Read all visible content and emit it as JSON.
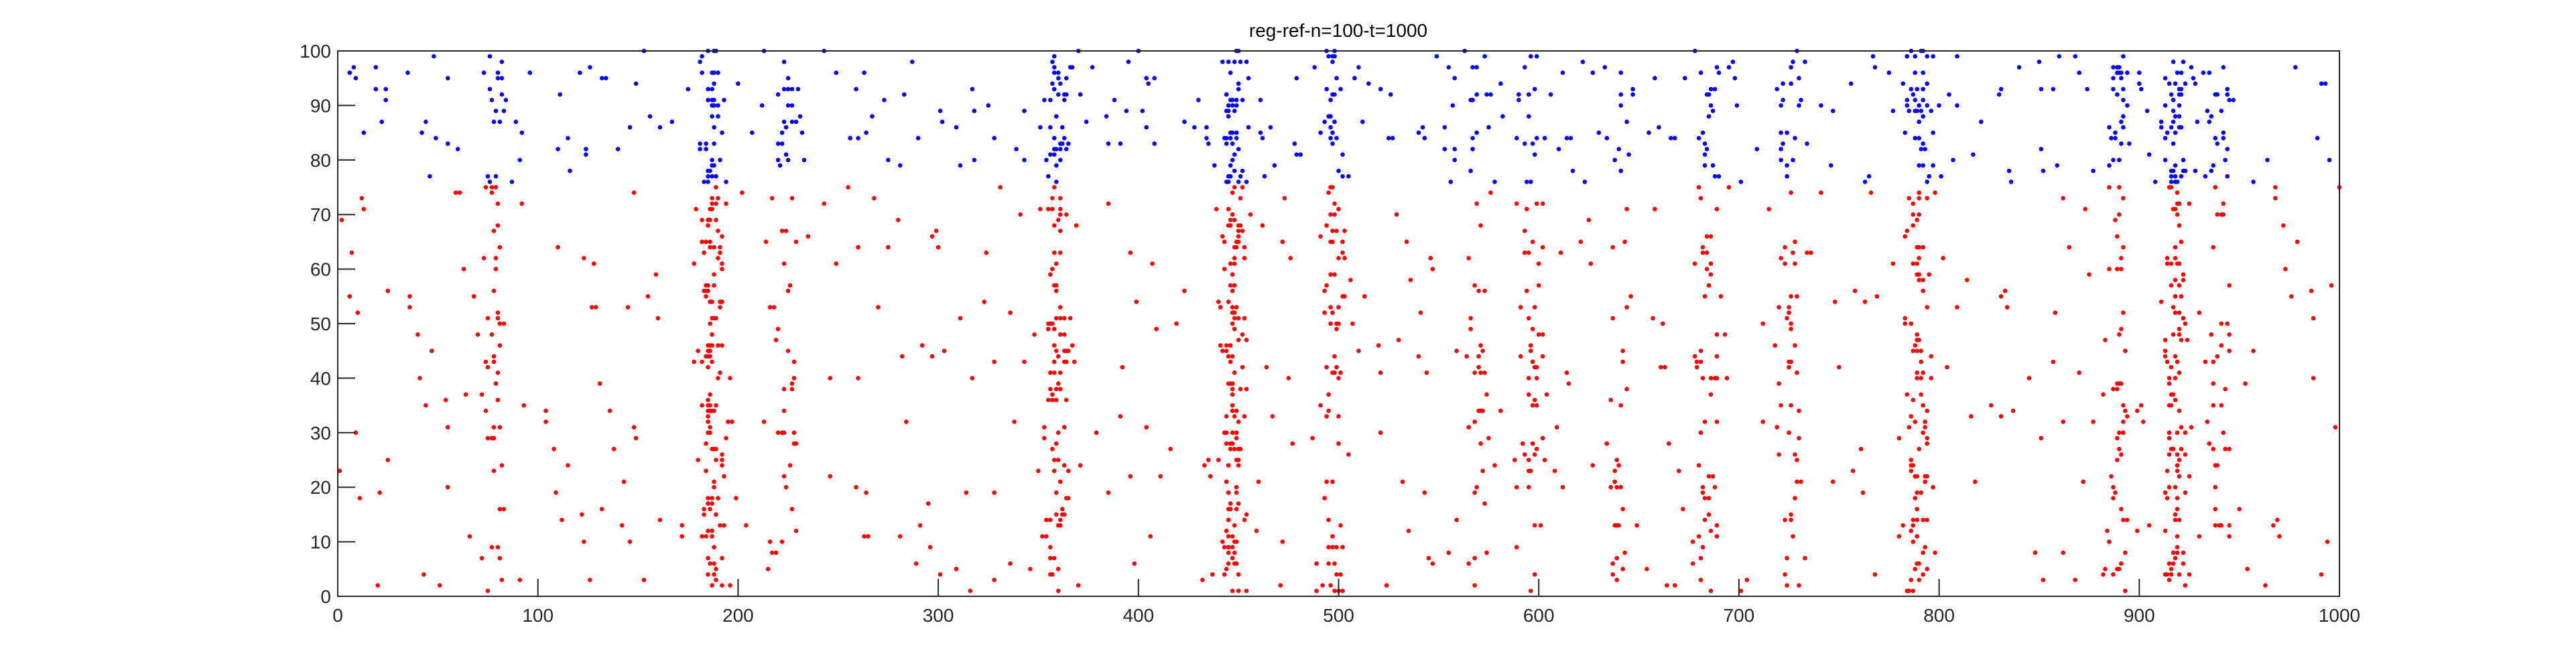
{
  "chart_data": {
    "type": "scatter",
    "title": "reg-ref-n=100-t=1000",
    "xlabel": "",
    "ylabel": "",
    "xlim": [
      0,
      1000
    ],
    "ylim": [
      0,
      100
    ],
    "xticks": [
      0,
      100,
      200,
      300,
      400,
      500,
      600,
      700,
      800,
      900,
      1000
    ],
    "yticks": [
      0,
      10,
      20,
      30,
      40,
      50,
      60,
      70,
      80,
      90,
      100
    ],
    "grid": false,
    "legend": "none",
    "series": [
      {
        "color": "#ff0000",
        "neurons": [
          1,
          75
        ],
        "base_rate": 0.0045,
        "bursts": [
          {
            "x": 78,
            "rate": 0.05
          },
          {
            "x": 187,
            "rate": 0.17
          },
          {
            "x": 224,
            "rate": 0.04
          },
          {
            "x": 360,
            "rate": 0.13
          },
          {
            "x": 447,
            "rate": 0.2
          },
          {
            "x": 498,
            "rate": 0.09
          },
          {
            "x": 570,
            "rate": 0.05
          },
          {
            "x": 598,
            "rate": 0.05
          },
          {
            "x": 640,
            "rate": 0.04
          },
          {
            "x": 685,
            "rate": 0.05
          },
          {
            "x": 725,
            "rate": 0.05
          },
          {
            "x": 790,
            "rate": 0.13
          },
          {
            "x": 890,
            "rate": 0.06
          },
          {
            "x": 918,
            "rate": 0.15
          },
          {
            "x": 940,
            "rate": 0.05
          }
        ]
      },
      {
        "color": "#0000ff",
        "neurons": [
          76,
          100
        ],
        "base_rate": 0.011,
        "bursts": [
          {
            "x": 78,
            "rate": 0.06
          },
          {
            "x": 187,
            "rate": 0.18
          },
          {
            "x": 224,
            "rate": 0.05
          },
          {
            "x": 360,
            "rate": 0.14
          },
          {
            "x": 447,
            "rate": 0.22
          },
          {
            "x": 498,
            "rate": 0.12
          },
          {
            "x": 570,
            "rate": 0.07
          },
          {
            "x": 598,
            "rate": 0.06
          },
          {
            "x": 640,
            "rate": 0.06
          },
          {
            "x": 685,
            "rate": 0.06
          },
          {
            "x": 725,
            "rate": 0.07
          },
          {
            "x": 790,
            "rate": 0.15
          },
          {
            "x": 890,
            "rate": 0.08
          },
          {
            "x": 918,
            "rate": 0.17
          },
          {
            "x": 940,
            "rate": 0.06
          }
        ]
      }
    ]
  }
}
